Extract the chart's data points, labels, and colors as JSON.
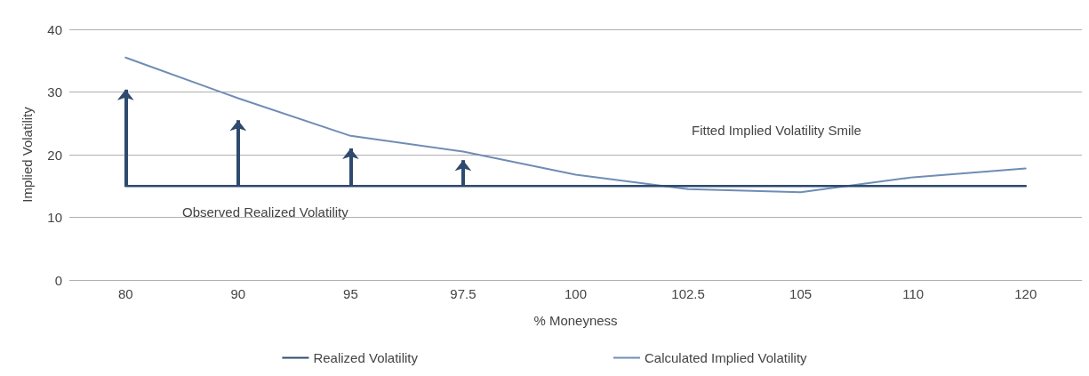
{
  "chart_data": {
    "type": "line",
    "xlabel": "% Moneyness",
    "ylabel": "Implied Volatility",
    "categories": [
      "80",
      "90",
      "95",
      "97.5",
      "100",
      "102.5",
      "105",
      "110",
      "120"
    ],
    "series": [
      {
        "name": "Realized Volatility",
        "color": "#2e4a6e",
        "values": [
          15,
          15,
          15,
          15,
          15,
          15,
          15,
          15,
          15
        ]
      },
      {
        "name": "Calculated Implied Volatility",
        "color": "#6f8db5",
        "values": [
          35.5,
          29,
          23,
          20.5,
          16.8,
          14.5,
          14,
          16.4,
          17.8
        ]
      }
    ],
    "ylim": [
      0,
      40
    ],
    "yticks": [
      0,
      10,
      20,
      30,
      40
    ],
    "grid": "y",
    "legend": "bottom",
    "marker": "none",
    "line_style": "solid",
    "annotations": [
      "Fitted Implied Volatility Smile",
      "Observed Realized Volatility"
    ]
  }
}
